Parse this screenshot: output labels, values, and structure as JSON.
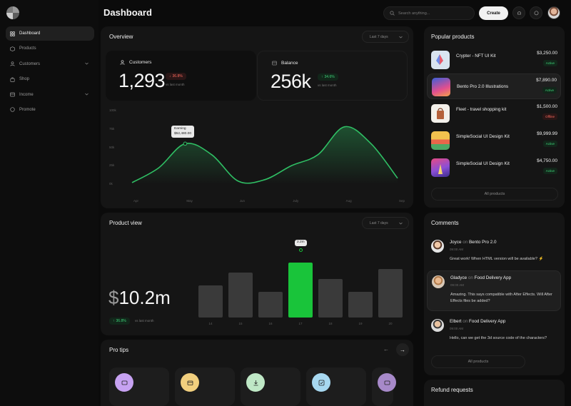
{
  "sidebar": {
    "items": [
      {
        "label": "Dashboard",
        "icon": "grid-icon"
      },
      {
        "label": "Products",
        "icon": "box-icon"
      },
      {
        "label": "Customers",
        "icon": "user-icon"
      },
      {
        "label": "Shop",
        "icon": "bag-icon"
      },
      {
        "label": "Income",
        "icon": "wallet-icon"
      },
      {
        "label": "Promote",
        "icon": "circle-icon"
      }
    ]
  },
  "header": {
    "title": "Dashboard",
    "search_placeholder": "Search anything...",
    "create_label": "Create"
  },
  "overview": {
    "title": "Overview",
    "range": "Last 7 days",
    "customers": {
      "label": "Customers",
      "value": "1,293",
      "change": "36.8%",
      "vs": "vs last month"
    },
    "balance": {
      "label": "Balance",
      "value": "256k",
      "change": "34.6%",
      "vs": "vs last month"
    },
    "tooltip": {
      "title": "Earning",
      "value": "$52,480.00"
    }
  },
  "chart_data": {
    "type": "area",
    "x": [
      "Apr",
      "May",
      "Jun",
      "July",
      "Aug",
      "Sep"
    ],
    "y_ticks": [
      "0k",
      "25k",
      "50k",
      "75k",
      "100k"
    ],
    "ylim": [
      0,
      100
    ],
    "series": [
      {
        "values": [
          [
            0,
            2
          ],
          [
            0.5,
            22
          ],
          [
            1,
            55
          ],
          [
            1.5,
            40
          ],
          [
            2,
            4
          ],
          [
            2.5,
            6
          ],
          [
            3,
            25
          ],
          [
            3.5,
            40
          ],
          [
            4,
            78
          ],
          [
            4.5,
            55
          ],
          [
            5,
            8
          ]
        ]
      }
    ],
    "accent": "#2fbf64"
  },
  "product_view": {
    "title": "Product view",
    "range": "Last 7 days",
    "value": "10.2m",
    "currency": "$",
    "change": "36.8%",
    "vs": "vs last month",
    "bar_tooltip": "2.2m",
    "bars": {
      "type": "bar",
      "categories": [
        "14",
        "15",
        "16",
        "17",
        "18",
        "19",
        "20"
      ],
      "values": [
        50,
        70,
        40,
        86,
        60,
        40,
        76
      ],
      "highlight_index": 3,
      "bar_color": "#3a3a3a",
      "highlight_color": "#19c43a"
    }
  },
  "pro_tips": {
    "title": "Pro tips",
    "cards": [
      {
        "icon": "tv-icon",
        "color": "#c7a2f2"
      },
      {
        "icon": "wallet-icon",
        "color": "#f1cf7e"
      },
      {
        "icon": "download-icon",
        "color": "#bfe8c6"
      },
      {
        "icon": "check-icon",
        "color": "#a7d8f0"
      },
      {
        "icon": "tv-icon",
        "color": "#a789c9"
      }
    ]
  },
  "popular": {
    "title": "Popular products",
    "button": "All products",
    "items": [
      {
        "name": "Crypter - NFT UI Kit",
        "price": "$3,250.00",
        "status": "Active"
      },
      {
        "name": "Bento Pro 2.0 Illustrations",
        "price": "$7,890.00",
        "status": "Active"
      },
      {
        "name": "Fleet - travel shopping kit",
        "price": "$1,500.00",
        "status": "Offline"
      },
      {
        "name": "SimpleSocial UI Design Kit",
        "price": "$9,999.99",
        "status": "Active"
      },
      {
        "name": "SimpleSocial UI Design Kit",
        "price": "$4,750.00",
        "status": "Active"
      }
    ]
  },
  "comments": {
    "title": "Comments",
    "button": "All products",
    "on_word": "on",
    "items": [
      {
        "author": "Joyce",
        "target": "Bento Pro 2.0",
        "time": "09:00 AM",
        "text": "Great work! When HTML version will be available? ⚡"
      },
      {
        "author": "Gladyce",
        "target": "Food Delivery App",
        "time": "09:00 AM",
        "text": "Amazing. This says compatible with After Effects. Will After Effects files be added?"
      },
      {
        "author": "Elbert",
        "target": "Food Delivery App",
        "time": "09:00 AM",
        "text": "Hello, can we get the 3d source code of the characters?"
      }
    ]
  },
  "refund": {
    "title": "Refund requests"
  }
}
